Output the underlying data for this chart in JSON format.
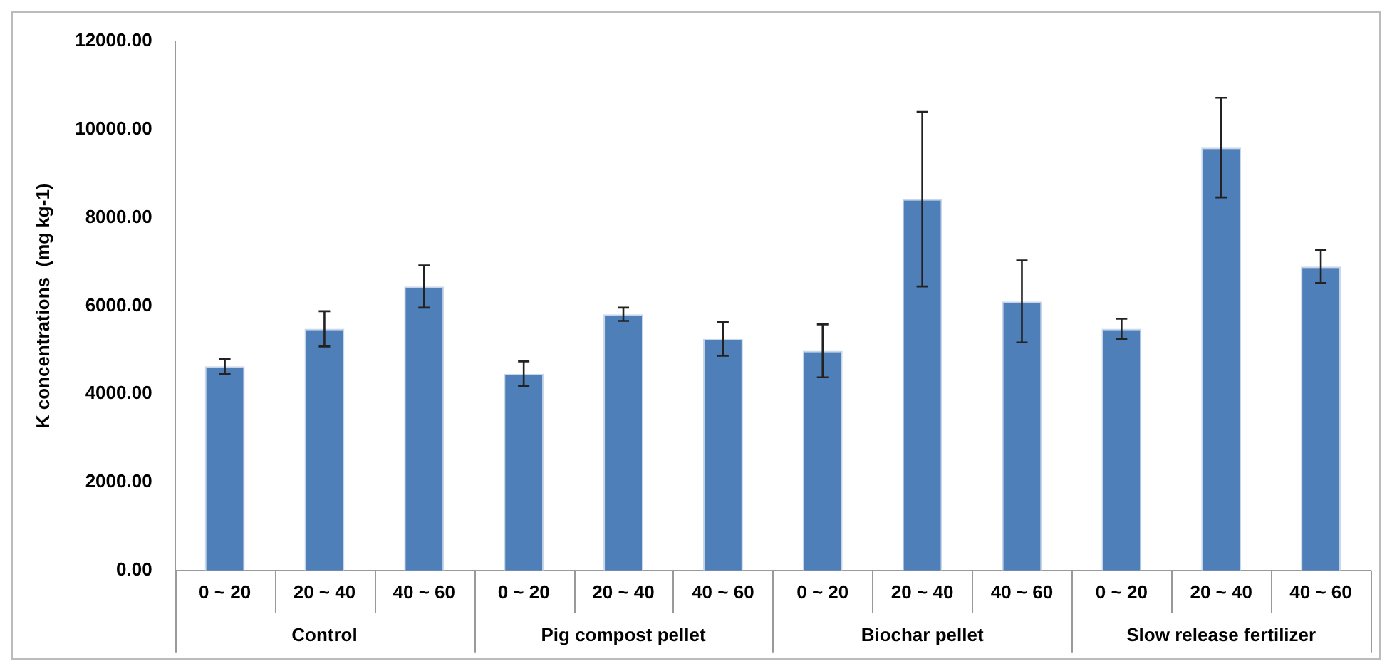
{
  "chart_data": {
    "type": "bar",
    "ylabel": "K concentrations  (mg kg-1)",
    "categories": [
      "0 ~ 20",
      "20 ~ 40",
      "40 ~ 60",
      "0 ~ 20",
      "20 ~ 40",
      "40 ~ 60",
      "0 ~ 20",
      "20 ~ 40",
      "40 ~ 60",
      "0 ~ 20",
      "20 ~ 40",
      "40 ~ 60"
    ],
    "annotations": [
      "Control",
      "Pig compost pellet",
      "Biochar pellet",
      "Slow release fertilizer"
    ],
    "series": [
      {
        "color": "#4f7fb8",
        "values": [
          4630,
          5480,
          6440,
          4460,
          5810,
          5250,
          4980,
          8420,
          6100,
          5480,
          9590,
          6890
        ],
        "errors": [
          170,
          400,
          480,
          280,
          150,
          380,
          600,
          1980,
          930,
          230,
          1130,
          370
        ]
      }
    ],
    "ylim": [
      0,
      12000
    ],
    "yticks": [
      {
        "value": 0,
        "label": "0.00"
      },
      {
        "value": 2000,
        "label": "2000.00"
      },
      {
        "value": 4000,
        "label": "4000.00"
      },
      {
        "value": 6000,
        "label": "6000.00"
      },
      {
        "value": 8000,
        "label": "8000.00"
      },
      {
        "value": 10000,
        "label": "10000.00"
      },
      {
        "value": 12000,
        "label": "12000.00"
      }
    ],
    "grid": false,
    "legend": false
  }
}
